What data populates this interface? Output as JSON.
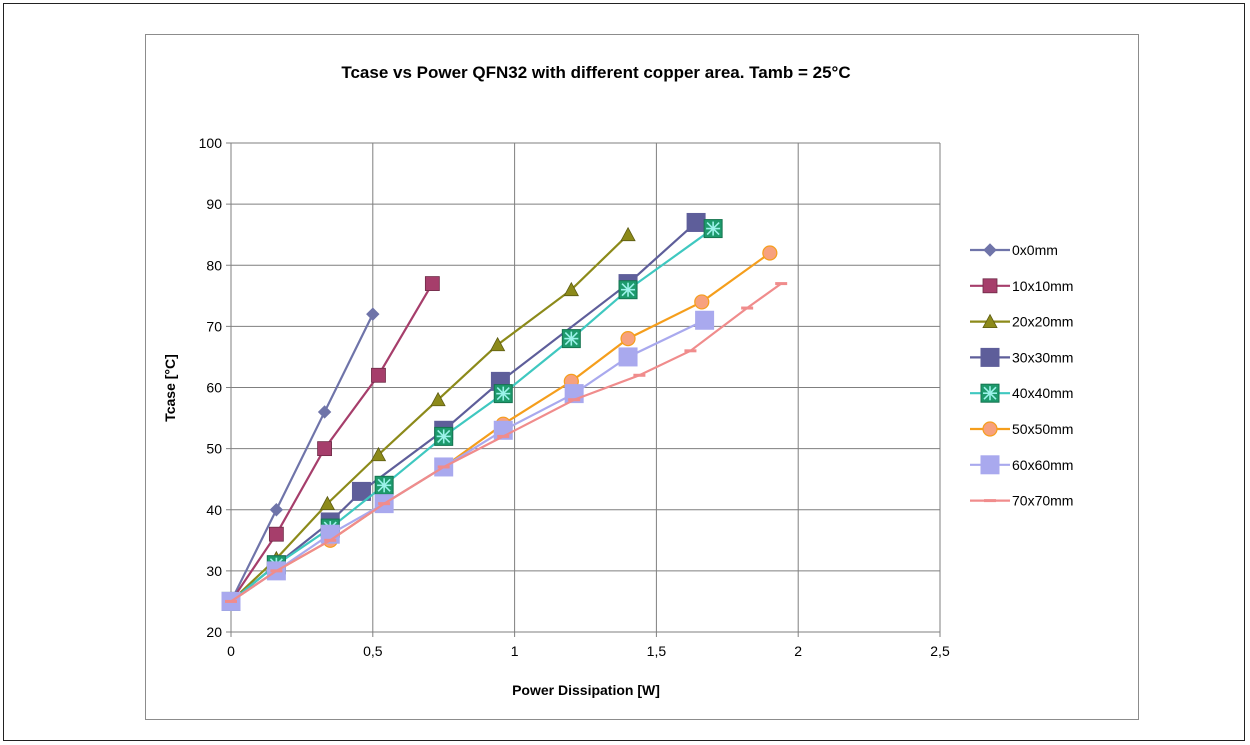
{
  "chart_data": {
    "type": "line",
    "title": "Tcase vs Power QFN32  with different copper area. Tamb = 25°C",
    "xlabel": "Power Dissipation [W]",
    "ylabel": "Tcase [°C]",
    "xlim": [
      0,
      2.5
    ],
    "ylim": [
      20,
      100
    ],
    "x_ticks": [
      "0",
      "0,5",
      "1",
      "1,5",
      "2",
      "2,5"
    ],
    "x_tick_values": [
      0,
      0.5,
      1,
      1.5,
      2,
      2.5
    ],
    "y_ticks": [
      "20",
      "30",
      "40",
      "50",
      "60",
      "70",
      "80",
      "90",
      "100"
    ],
    "y_tick_values": [
      20,
      30,
      40,
      50,
      60,
      70,
      80,
      90,
      100
    ],
    "grid": "major, both axes",
    "legend_position": "right",
    "series": [
      {
        "name": "0x0mm",
        "color": "#6F74A9",
        "marker": "diamond",
        "x": [
          0,
          0.16,
          0.33,
          0.5
        ],
        "y": [
          25,
          40,
          56,
          72
        ]
      },
      {
        "name": "10x10mm",
        "color": "#A63E6B",
        "marker": "square",
        "x": [
          0,
          0.16,
          0.33,
          0.52,
          0.71
        ],
        "y": [
          25,
          36,
          50,
          62,
          77
        ]
      },
      {
        "name": "20x20mm",
        "color": "#8C8A1A",
        "marker": "triangle",
        "x": [
          0,
          0.16,
          0.34,
          0.52,
          0.73,
          0.94,
          1.2,
          1.4
        ],
        "y": [
          25,
          32,
          41,
          49,
          58,
          67,
          76,
          85
        ]
      },
      {
        "name": "30x30mm",
        "color": "#5E5E9A",
        "marker": "bigsquare",
        "x": [
          0,
          0.16,
          0.35,
          0.46,
          0.75,
          0.95,
          1.4,
          1.64
        ],
        "y": [
          25,
          31,
          38,
          43,
          53,
          61,
          77,
          87
        ]
      },
      {
        "name": "40x40mm",
        "color": "#3FC8C0",
        "marker": "asterisk",
        "x": [
          0,
          0.16,
          0.35,
          0.54,
          0.75,
          0.96,
          1.2,
          1.4,
          1.7
        ],
        "y": [
          25,
          31,
          37,
          44,
          52,
          59,
          68,
          76,
          86
        ]
      },
      {
        "name": "50x50mm",
        "color": "#F59E1C",
        "marker": "circle",
        "x": [
          0,
          0.16,
          0.35,
          0.54,
          0.75,
          0.96,
          1.2,
          1.4,
          1.66,
          1.9
        ],
        "y": [
          25,
          30,
          35,
          41,
          47,
          54,
          61,
          68,
          74,
          82
        ]
      },
      {
        "name": "60x60mm",
        "color": "#A9A9EE",
        "marker": "bigsquare",
        "x": [
          0,
          0.16,
          0.35,
          0.54,
          0.75,
          0.96,
          1.21,
          1.4,
          1.67
        ],
        "y": [
          25,
          30,
          36,
          41,
          47,
          53,
          59,
          65,
          71
        ]
      },
      {
        "name": "70x70mm",
        "color": "#F08C8C",
        "marker": "dash",
        "x": [
          0,
          0.16,
          0.35,
          0.54,
          0.75,
          0.96,
          1.21,
          1.44,
          1.62,
          1.82,
          1.94
        ],
        "y": [
          25,
          30,
          35,
          41,
          47,
          52,
          58,
          62,
          66,
          73,
          77
        ]
      }
    ]
  }
}
